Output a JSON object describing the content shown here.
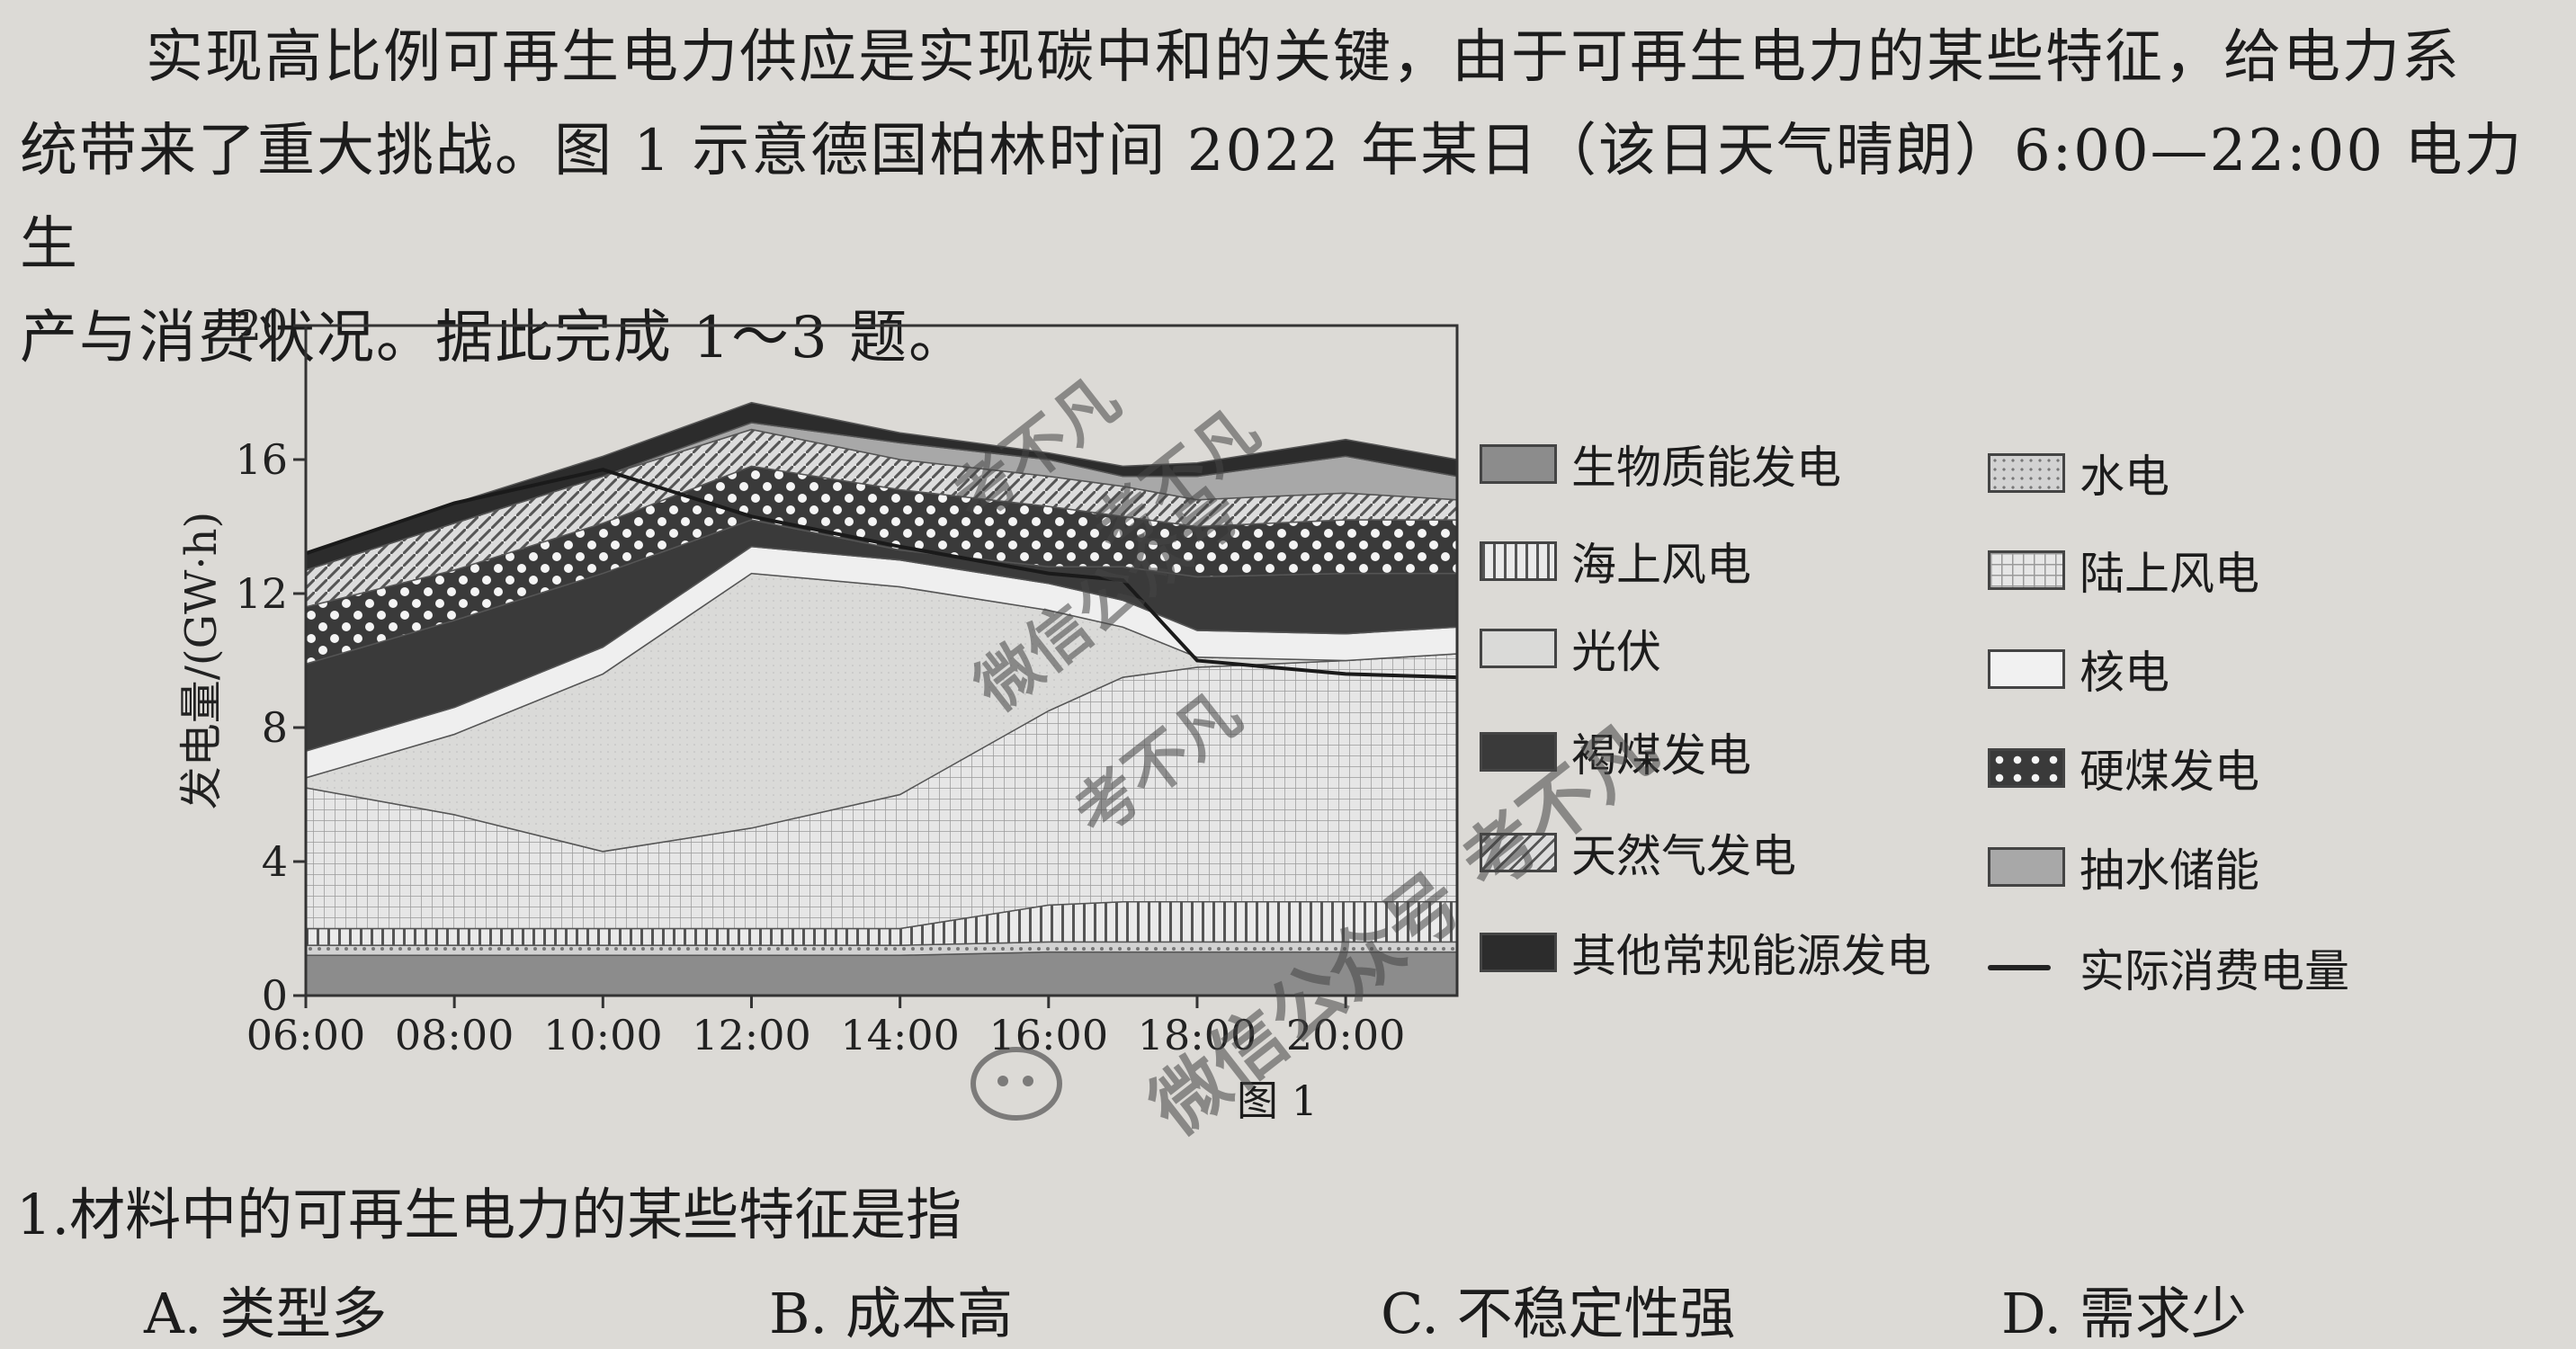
{
  "intro": {
    "line1": "实现高比例可再生电力供应是实现碳中和的关键，由于可再生电力的某些特征，给电力系",
    "line2": "统带来了重大挑战。图 1 示意德国柏林时间 2022 年某日（该日天气晴朗）6:00—22:00 电力生",
    "line3": "产与消费状况。据此完成 1～3 题。"
  },
  "figure_caption": "图 1",
  "question": {
    "stem": "1.材料中的可再生电力的某些特征是指",
    "options": [
      {
        "label": "A. 类型多"
      },
      {
        "label": "B. 成本高"
      },
      {
        "label": "C. 不稳定性强"
      },
      {
        "label": "D. 需求少"
      }
    ]
  },
  "watermarks": [
    "考不凡",
    "考不凡",
    "微信公众号",
    "考不凡",
    "微信公众号 考不凡"
  ],
  "colors": {
    "paper": "#dcdad6",
    "ink": "#1c1c1c"
  },
  "chart_data": {
    "type": "area",
    "title": "",
    "ylabel": "发电量/(GW·h)",
    "xlabel": "",
    "ylim": [
      0,
      20
    ],
    "yticks": [
      0,
      4,
      8,
      12,
      16,
      20
    ],
    "xlim": [
      6,
      21.5
    ],
    "xticks": [
      6,
      8,
      10,
      12,
      14,
      16,
      18,
      20
    ],
    "xtick_labels": [
      "06:00",
      "08:00",
      "10:00",
      "12:00",
      "14:00",
      "16:00",
      "18:00",
      "20:00"
    ],
    "x": [
      6,
      8,
      10,
      12,
      14,
      16,
      17,
      18,
      20,
      21.5
    ],
    "legend": [
      {
        "name": "生物质能发电",
        "fill": "#8c8c8c",
        "pattern": "solid"
      },
      {
        "name": "水电",
        "fill": "#d2d2d2",
        "pattern": "dots"
      },
      {
        "name": "海上风电",
        "fill": "#e4e4e4",
        "pattern": "vlines"
      },
      {
        "name": "陆上风电",
        "fill": "#e0e0e0",
        "pattern": "grid"
      },
      {
        "name": "光伏",
        "fill": "#d8d8d6",
        "pattern": "light"
      },
      {
        "name": "核电",
        "fill": "#efefef",
        "pattern": "solid"
      },
      {
        "name": "褐煤发电",
        "fill": "#3a3a3a",
        "pattern": "solid"
      },
      {
        "name": "硬煤发电",
        "fill": "#3a3a3a",
        "pattern": "whitedots"
      },
      {
        "name": "天然气发电",
        "fill": "#d0d0d0",
        "pattern": "diag"
      },
      {
        "name": "抽水储能",
        "fill": "#a8a8a8",
        "pattern": "solid"
      },
      {
        "name": "其他常规能源发电",
        "fill": "#2c2c2c",
        "pattern": "solid"
      },
      {
        "name": "实际消费电量",
        "fill": "#222222",
        "pattern": "line"
      }
    ],
    "series": [
      {
        "name": "生物质能发电",
        "values": [
          1.2,
          1.2,
          1.2,
          1.2,
          1.2,
          1.3,
          1.3,
          1.3,
          1.3,
          1.3
        ]
      },
      {
        "name": "水电",
        "values": [
          0.3,
          0.3,
          0.3,
          0.3,
          0.3,
          0.3,
          0.3,
          0.3,
          0.3,
          0.3
        ]
      },
      {
        "name": "海上风电",
        "values": [
          0.5,
          0.5,
          0.5,
          0.5,
          0.5,
          1.1,
          1.2,
          1.2,
          1.2,
          1.2
        ]
      },
      {
        "name": "陆上风电",
        "values": [
          4.2,
          3.4,
          2.3,
          3.0,
          4.0,
          5.8,
          6.7,
          7.0,
          7.2,
          7.4
        ]
      },
      {
        "name": "光伏",
        "values": [
          0.3,
          2.4,
          5.3,
          7.6,
          6.2,
          3.0,
          1.5,
          0.3,
          0.0,
          0.0
        ]
      },
      {
        "name": "核电",
        "values": [
          0.8,
          0.8,
          0.8,
          0.8,
          0.8,
          0.8,
          0.8,
          0.8,
          0.8,
          0.8
        ]
      },
      {
        "name": "褐煤发电",
        "values": [
          2.6,
          2.6,
          2.2,
          0.8,
          0.3,
          0.5,
          1.0,
          1.6,
          1.8,
          1.6
        ]
      },
      {
        "name": "硬煤发电",
        "values": [
          1.7,
          1.5,
          1.5,
          1.6,
          1.8,
          1.8,
          1.5,
          1.5,
          1.6,
          1.6
        ]
      },
      {
        "name": "天然气发电",
        "values": [
          1.1,
          1.4,
          1.4,
          1.1,
          0.9,
          0.9,
          0.9,
          0.8,
          0.8,
          0.6
        ]
      },
      {
        "name": "抽水储能",
        "values": [
          0.0,
          0.0,
          0.0,
          0.2,
          0.5,
          0.5,
          0.3,
          0.7,
          1.1,
          0.7
        ]
      },
      {
        "name": "其他常规能源发电",
        "values": [
          0.5,
          0.6,
          0.6,
          0.6,
          0.3,
          0.2,
          0.3,
          0.4,
          0.5,
          0.5
        ]
      },
      {
        "name": "实际消费电量",
        "values": [
          13.2,
          14.7,
          15.7,
          14.3,
          13.4,
          12.6,
          12.4,
          10.0,
          9.6,
          9.5
        ]
      }
    ]
  }
}
